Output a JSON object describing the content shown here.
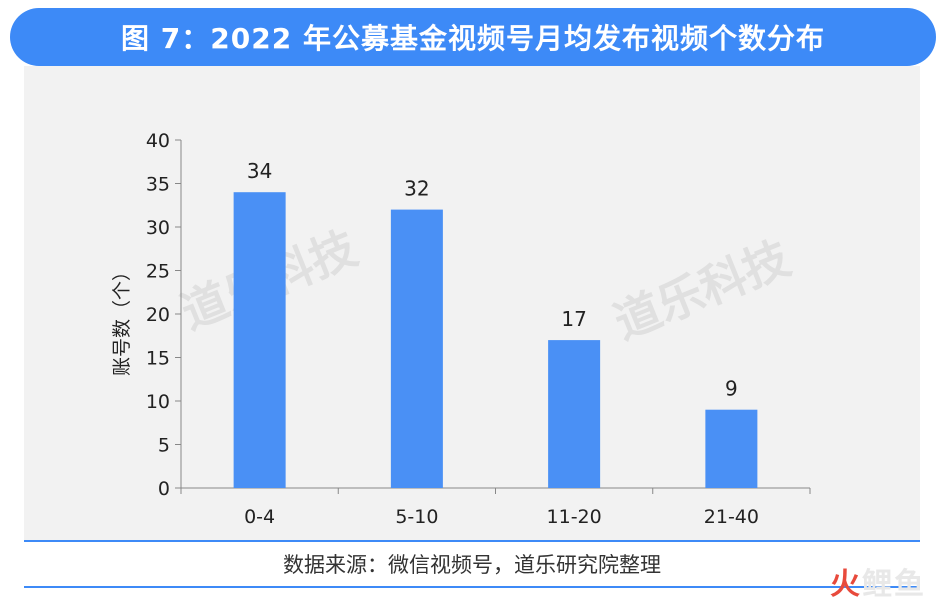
{
  "header": {
    "title": "图 7：2022 年公募基金视频号月均发布视频个数分布"
  },
  "watermark": {
    "text": "道乐科技"
  },
  "footer": {
    "source": "数据来源：微信视频号，道乐研究院整理"
  },
  "logo": {
    "first": "火",
    "rest": "鲤鱼"
  },
  "colors": {
    "accent": "#3d8af7",
    "bar": "#4a90f5",
    "panel": "#f2f2f2"
  },
  "chart_data": {
    "type": "bar",
    "categories": [
      "0-4",
      "5-10",
      "11-20",
      "21-40"
    ],
    "values": [
      34,
      32,
      17,
      9
    ],
    "data_labels": [
      "34",
      "32",
      "17",
      "9"
    ],
    "ylabel": "账号数（个）",
    "xlabel": "",
    "ylim": [
      0,
      40
    ],
    "yticks": [
      0,
      5,
      10,
      15,
      20,
      25,
      30,
      35,
      40
    ],
    "grid": false,
    "legend": "none"
  }
}
